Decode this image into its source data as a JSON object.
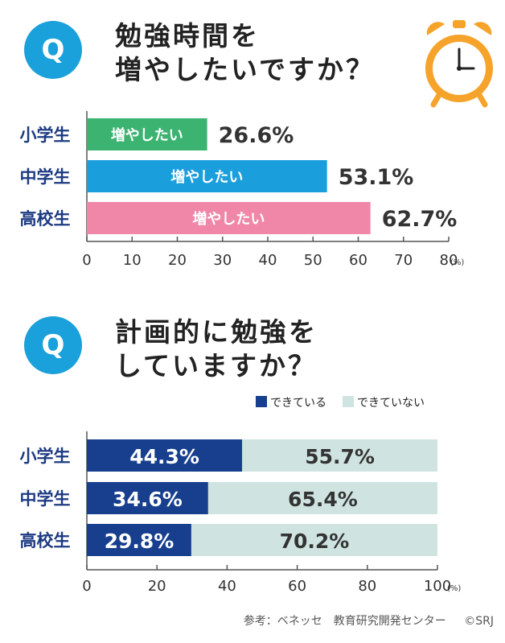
{
  "questions": [
    {
      "badge": "Q",
      "line1": "勉強時間を",
      "line2": "増やしたいですか？"
    },
    {
      "badge": "Q",
      "line1": "計画的に勉強を",
      "line2": "していますか？"
    }
  ],
  "colors": {
    "elementary": "#3cb371",
    "middle": "#1a9fdc",
    "high": "#f087a8",
    "done": "#173f8e",
    "not_done": "#cfe4e0",
    "badge": "#1aa0da",
    "category_label": "#1c3a82",
    "axis": "#555555"
  },
  "chart_data": [
    {
      "type": "bar",
      "orientation": "horizontal",
      "title": "勉強時間を増やしたいですか？",
      "categories": [
        "小学生",
        "中学生",
        "高校生"
      ],
      "bar_label": "増やしたい",
      "values": [
        26.6,
        53.1,
        62.7
      ],
      "value_labels": [
        "26.6%",
        "53.1%",
        "62.7%"
      ],
      "xlim": [
        0,
        80
      ],
      "ticks": [
        "0",
        "10",
        "20",
        "30",
        "40",
        "50",
        "60",
        "70",
        "80"
      ],
      "unit": "(%)"
    },
    {
      "type": "bar",
      "orientation": "horizontal",
      "stacked": true,
      "title": "計画的に勉強をしていますか？",
      "categories": [
        "小学生",
        "中学生",
        "高校生"
      ],
      "legend": [
        "できている",
        "できていない"
      ],
      "series": [
        {
          "name": "できている",
          "values": [
            44.3,
            34.6,
            29.8
          ],
          "labels": [
            "44.3%",
            "34.6%",
            "29.8%"
          ]
        },
        {
          "name": "できていない",
          "values": [
            55.7,
            65.4,
            70.2
          ],
          "labels": [
            "55.7%",
            "65.4%",
            "70.2%"
          ]
        }
      ],
      "xlim": [
        0,
        100
      ],
      "ticks": [
        "0",
        "20",
        "40",
        "60",
        "80",
        "100"
      ],
      "unit": "(%)"
    }
  ],
  "credit": {
    "source": "参考：ベネッセ　教育研究開発センター",
    "copyright": "©SRJ"
  }
}
